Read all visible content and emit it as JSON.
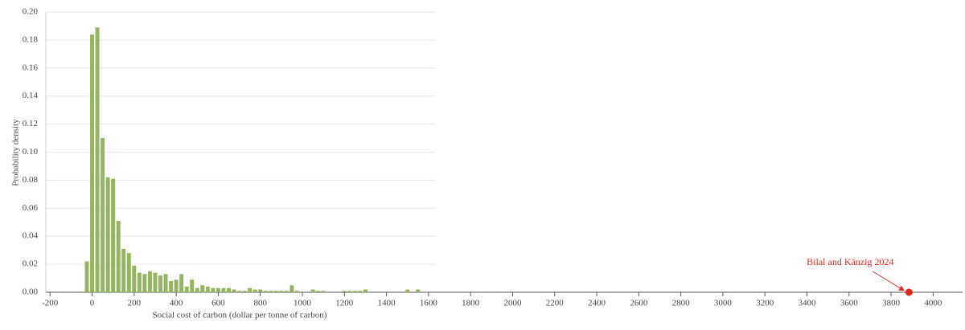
{
  "chart_data": {
    "type": "histogram",
    "xlabel": "Social cost of carbon (dollar per tonne of carbon)",
    "ylabel": "Probability density",
    "color": "#93b55f",
    "bins": [
      -37.5,
      -12.5,
      12.5,
      37.5,
      62.5,
      87.5,
      112.5,
      137.5,
      162.5,
      187.5,
      212.5,
      237.5,
      262.5,
      287.5,
      312.5,
      337.5,
      362.5,
      387.5,
      412.5,
      437.5,
      462.5,
      487.5,
      512.5,
      537.5,
      562.5,
      587.5,
      612.5,
      637.5,
      662.5,
      687.5,
      712.5,
      737.5,
      762.5,
      787.5,
      812.5,
      837.5,
      862.5,
      887.5,
      912.5,
      937.5,
      962.5,
      987.5,
      1012.5,
      1037.5,
      1062.5,
      1087.5,
      1112.5,
      1137.5,
      1162.5,
      1187.5,
      1212.5,
      1237.5,
      1262.5,
      1287.5,
      1312.5,
      1337.5,
      1362.5,
      1387.5,
      1412.5,
      1437.5,
      1462.5,
      1487.5,
      1512.5,
      1537.5,
      1562.5
    ],
    "values": [
      0.022,
      0.184,
      0.189,
      0.11,
      0.082,
      0.081,
      0.051,
      0.031,
      0.028,
      0.019,
      0.014,
      0.013,
      0.015,
      0.014,
      0.012,
      0.013,
      0.008,
      0.009,
      0.013,
      0.004,
      0.009,
      0.003,
      0.005,
      0.004,
      0.003,
      0.003,
      0.003,
      0.003,
      0.002,
      0.001,
      0.001,
      0.003,
      0.002,
      0.002,
      0.001,
      0.001,
      0.001,
      0.001,
      0.001,
      0.005,
      0.001,
      0,
      0,
      0.002,
      0.001,
      0.001,
      0,
      0,
      0,
      0.001,
      0.001,
      0.001,
      0.001,
      0.002,
      0,
      0,
      0,
      0,
      0,
      0,
      0,
      0.002,
      0,
      0.002
    ],
    "xlim": [
      -220,
      4140
    ],
    "xticks": [
      -200,
      0,
      200,
      400,
      600,
      800,
      1000,
      1200,
      1400,
      1600,
      1800,
      2000,
      2200,
      2400,
      2600,
      2800,
      3000,
      3200,
      3400,
      3600,
      3800,
      4000
    ],
    "ylim": [
      0,
      0.2
    ],
    "yticks": [
      {
        "value": 0,
        "label": "0.00"
      },
      {
        "value": 0.02,
        "label": "0.02"
      },
      {
        "value": 0.04,
        "label": "0.04"
      },
      {
        "value": 0.06,
        "label": "0.06"
      },
      {
        "value": 0.08,
        "label": "0.08"
      },
      {
        "value": 0.1,
        "label": "0.10"
      },
      {
        "value": 0.12,
        "label": "0.12"
      },
      {
        "value": 0.14,
        "label": "0.14"
      },
      {
        "value": 0.16,
        "label": "0.16"
      },
      {
        "value": 0.18,
        "label": "0.18"
      },
      {
        "value": 0.2,
        "label": "0.20"
      }
    ],
    "grid": true,
    "annotation": {
      "text": "Bilal and Känzig 2024",
      "x": 3885,
      "y": 0,
      "color": "#e0281e"
    }
  }
}
